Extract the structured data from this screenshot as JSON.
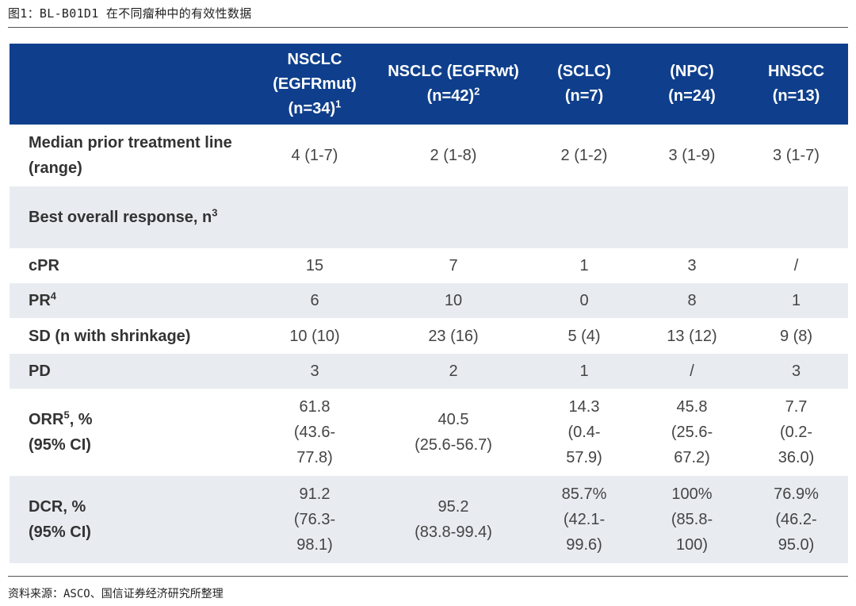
{
  "caption": "图1：BL-B01D1 在不同瘤种中的有效性数据",
  "source": "资料来源：ASCO、国信证券经济研究所整理",
  "header_color": "#0f3f8c",
  "alt_row_color": "#e8ecf1",
  "columns": [
    {
      "line1": "NSCLC",
      "line2": "(EGFRmut)",
      "line3": "(n=34)",
      "sup": "1"
    },
    {
      "line1": "NSCLC (EGFRwt)",
      "line2": "(n=42)",
      "sup": "2"
    },
    {
      "line1": "(SCLC)",
      "line2": "(n=7)"
    },
    {
      "line1": "(NPC)",
      "line2": "(n=24)"
    },
    {
      "line1": "HNSCC",
      "line2": "(n=13)"
    }
  ],
  "rows": {
    "median_prior": {
      "label": "Median prior treatment line (range)",
      "values": [
        "4 (1-7)",
        "2 (1-8)",
        "2 (1-2)",
        "3 (1-9)",
        "3 (1-7)"
      ]
    },
    "best_overall": {
      "label": "Best overall response, n",
      "sup": "3"
    },
    "cpr": {
      "label": "cPR",
      "values": [
        "15",
        "7",
        "1",
        "3",
        "/"
      ]
    },
    "pr": {
      "label": "PR",
      "sup": "4",
      "values": [
        "6",
        "10",
        "0",
        "8",
        "1"
      ]
    },
    "sd": {
      "label": "SD (n with shrinkage)",
      "values": [
        "10 (10)",
        "23 (16)",
        "5 (4)",
        "13 (12)",
        "9 (8)"
      ]
    },
    "pd": {
      "label": "PD",
      "values": [
        "3",
        "2",
        "1",
        "/",
        "3"
      ]
    },
    "orr": {
      "label_a": "ORR",
      "sup": "5",
      "label_b": ", %",
      "label_c": "(95% CI)",
      "values": [
        {
          "v": "61.8",
          "ci1": "(43.6-",
          "ci2": "77.8)"
        },
        {
          "v": "40.5",
          "ci1": "(25.6-56.7)",
          "ci2": ""
        },
        {
          "v": "14.3",
          "ci1": "(0.4-",
          "ci2": "57.9)"
        },
        {
          "v": "45.8",
          "ci1": "(25.6-",
          "ci2": "67.2)"
        },
        {
          "v": "7.7",
          "ci1": "(0.2-",
          "ci2": "36.0)"
        }
      ]
    },
    "dcr": {
      "label_a": "DCR, %",
      "label_c": "(95% CI)",
      "values": [
        {
          "v": "91.2",
          "ci1": "(76.3-",
          "ci2": "98.1)"
        },
        {
          "v": "95.2",
          "ci1": "(83.8-99.4)",
          "ci2": ""
        },
        {
          "v": "85.7%",
          "ci1": "(42.1-",
          "ci2": "99.6)"
        },
        {
          "v": "100%",
          "ci1": "(85.8-",
          "ci2": "100)"
        },
        {
          "v": "76.9%",
          "ci1": "(46.2-",
          "ci2": "95.0)"
        }
      ]
    }
  }
}
